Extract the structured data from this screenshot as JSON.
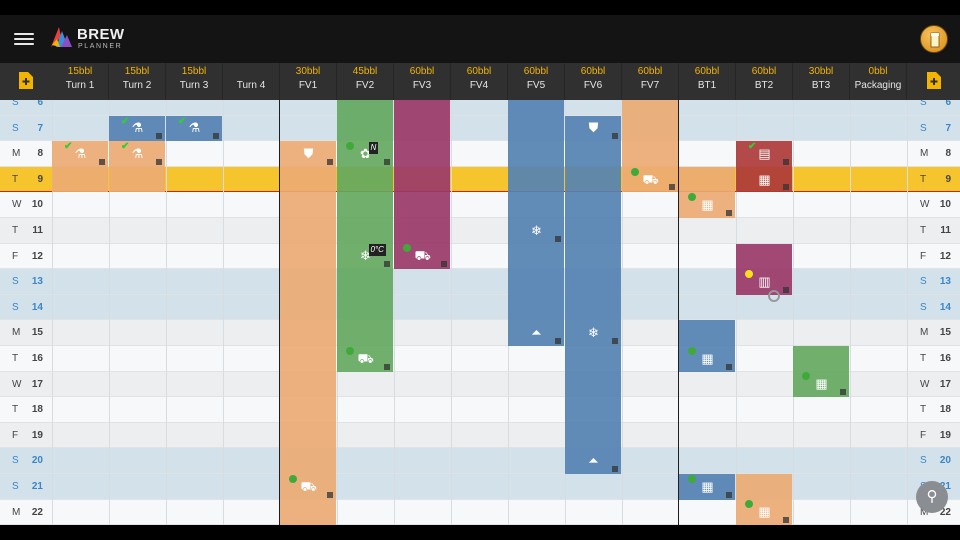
{
  "app": {
    "brand_title": "BREW",
    "brand_subtitle": "PLANNER",
    "menu_icon": "hamburger-menu-icon",
    "profile_icon": "beer-glass-avatar-icon"
  },
  "colors": {
    "header_bg": "#303030",
    "capacity": "#f3b400",
    "today_row": "#f6c52e",
    "today_line": "#d32020",
    "weekend_row": "#d3e2ea",
    "weekend_text": "#3a86c8",
    "blue": "#5582b2",
    "orange": "#eaaa73",
    "green": "#64a860",
    "magenta": "#9a3868",
    "red": "#ad3a3a",
    "status_green": "#3faa3a",
    "status_yellow": "#f6e21c"
  },
  "columns": [
    {
      "capacity": "15bbl",
      "name": "Turn 1"
    },
    {
      "capacity": "15bbl",
      "name": "Turn 2"
    },
    {
      "capacity": "15bbl",
      "name": "Turn 3"
    },
    {
      "capacity": "",
      "name": "Turn 4"
    },
    {
      "capacity": "30bbl",
      "name": "FV1"
    },
    {
      "capacity": "45bbl",
      "name": "FV2"
    },
    {
      "capacity": "60bbl",
      "name": "FV3"
    },
    {
      "capacity": "60bbl",
      "name": "FV4"
    },
    {
      "capacity": "60bbl",
      "name": "FV5"
    },
    {
      "capacity": "60bbl",
      "name": "FV6"
    },
    {
      "capacity": "60bbl",
      "name": "FV7"
    },
    {
      "capacity": "60bbl",
      "name": "BT1"
    },
    {
      "capacity": "60bbl",
      "name": "BT2"
    },
    {
      "capacity": "30bbl",
      "name": "BT3"
    },
    {
      "capacity": "0bbl",
      "name": "Packaging"
    }
  ],
  "days": [
    {
      "letter": "S",
      "num": "6",
      "weekend": true
    },
    {
      "letter": "S",
      "num": "7",
      "weekend": true
    },
    {
      "letter": "M",
      "num": "8",
      "weekend": false
    },
    {
      "letter": "T",
      "num": "9",
      "weekend": false,
      "today": true
    },
    {
      "letter": "W",
      "num": "10",
      "weekend": false
    },
    {
      "letter": "T",
      "num": "11",
      "weekend": false
    },
    {
      "letter": "F",
      "num": "12",
      "weekend": false
    },
    {
      "letter": "S",
      "num": "13",
      "weekend": true
    },
    {
      "letter": "S",
      "num": "14",
      "weekend": true
    },
    {
      "letter": "M",
      "num": "15",
      "weekend": false
    },
    {
      "letter": "T",
      "num": "16",
      "weekend": false
    },
    {
      "letter": "W",
      "num": "17",
      "weekend": false
    },
    {
      "letter": "T",
      "num": "18",
      "weekend": false
    },
    {
      "letter": "F",
      "num": "19",
      "weekend": false
    },
    {
      "letter": "S",
      "num": "20",
      "weekend": true
    },
    {
      "letter": "S",
      "num": "21",
      "weekend": true
    },
    {
      "letter": "M",
      "num": "22",
      "weekend": false
    }
  ],
  "blocks": [
    {
      "col": 1,
      "start": 1,
      "end": 1,
      "color": "blue"
    },
    {
      "col": 2,
      "start": 1,
      "end": 1,
      "color": "blue"
    },
    {
      "col": 0,
      "start": 2,
      "end": 3,
      "color": "orange"
    },
    {
      "col": 1,
      "start": 2,
      "end": 3,
      "color": "orange"
    },
    {
      "col": 4,
      "start": 2,
      "end": 16,
      "color": "orange"
    },
    {
      "col": 5,
      "start": 0,
      "end": 10,
      "color": "green"
    },
    {
      "col": 6,
      "start": 0,
      "end": 6,
      "color": "magenta"
    },
    {
      "col": 8,
      "start": 0,
      "end": 9,
      "color": "blue"
    },
    {
      "col": 9,
      "start": 1,
      "end": 14,
      "color": "blue"
    },
    {
      "col": 10,
      "start": 0,
      "end": 3,
      "color": "orange"
    },
    {
      "col": 11,
      "start": 3,
      "end": 4,
      "color": "orange"
    },
    {
      "col": 12,
      "start": 2,
      "end": 3,
      "color": "red"
    },
    {
      "col": 12,
      "start": 6,
      "end": 7,
      "color": "magenta"
    },
    {
      "col": 11,
      "start": 9,
      "end": 10,
      "color": "blue"
    },
    {
      "col": 13,
      "start": 10,
      "end": 11,
      "color": "green"
    },
    {
      "col": 11,
      "start": 15,
      "end": 15,
      "color": "blue"
    },
    {
      "col": 12,
      "start": 15,
      "end": 16,
      "color": "orange"
    }
  ],
  "events": [
    {
      "col": 1,
      "row": 1,
      "icon": "kettle-icon",
      "glyph": "⚗",
      "check": true
    },
    {
      "col": 2,
      "row": 1,
      "icon": "kettle-icon",
      "glyph": "⚗",
      "check": true
    },
    {
      "col": 0,
      "row": 2,
      "icon": "kettle-icon",
      "glyph": "⚗",
      "check": true
    },
    {
      "col": 1,
      "row": 2,
      "icon": "kettle-icon",
      "glyph": "⚗",
      "check": true
    },
    {
      "col": 9,
      "row": 1,
      "icon": "transfer-icon",
      "glyph": "⛊"
    },
    {
      "col": 4,
      "row": 2,
      "icon": "transfer-icon",
      "glyph": "⛊"
    },
    {
      "col": 5,
      "row": 2,
      "icon": "dry-hop-icon",
      "glyph": "✿",
      "dot": "green",
      "badge": "N"
    },
    {
      "col": 12,
      "row": 2,
      "icon": "keg-icon",
      "glyph": "▤",
      "check": true
    },
    {
      "col": 10,
      "row": 3,
      "icon": "cart-icon",
      "glyph": "⛟",
      "dot": "green"
    },
    {
      "col": 12,
      "row": 3,
      "icon": "package-icon",
      "glyph": "▦"
    },
    {
      "col": 11,
      "row": 4,
      "icon": "package-icon",
      "glyph": "▦",
      "dot": "green"
    },
    {
      "col": 8,
      "row": 5,
      "icon": "snowflake-icon",
      "glyph": "❄"
    },
    {
      "col": 5,
      "row": 6,
      "icon": "snowflake-icon",
      "glyph": "❄",
      "badge": "0°C"
    },
    {
      "col": 6,
      "row": 6,
      "icon": "cart-icon",
      "glyph": "⛟",
      "dot": "green"
    },
    {
      "col": 12,
      "row": 7,
      "icon": "can-icon",
      "glyph": "▥",
      "dot": "yellow",
      "blocked": true
    },
    {
      "col": 8,
      "row": 9,
      "icon": "yeast-flask-icon",
      "glyph": "⏶"
    },
    {
      "col": 9,
      "row": 9,
      "icon": "snowflake-icon",
      "glyph": "❄"
    },
    {
      "col": 5,
      "row": 10,
      "icon": "cart-icon",
      "glyph": "⛟",
      "dot": "green"
    },
    {
      "col": 11,
      "row": 10,
      "icon": "package-icon",
      "glyph": "▦",
      "dot": "green"
    },
    {
      "col": 13,
      "row": 11,
      "icon": "package-icon",
      "glyph": "▦",
      "dot": "green"
    },
    {
      "col": 9,
      "row": 14,
      "icon": "yeast-flask-icon",
      "glyph": "⏶"
    },
    {
      "col": 4,
      "row": 15,
      "icon": "cart-icon",
      "glyph": "⛟",
      "dot": "green"
    },
    {
      "col": 11,
      "row": 15,
      "icon": "package-icon",
      "glyph": "▦",
      "dot": "green"
    },
    {
      "col": 12,
      "row": 16,
      "icon": "package-icon",
      "glyph": "▦",
      "dot": "green"
    }
  ],
  "actions": {
    "add_left_icon": "add-document-icon",
    "add_right_icon": "add-document-icon",
    "search_icon": "search-icon",
    "search_glyph": "⚲"
  }
}
